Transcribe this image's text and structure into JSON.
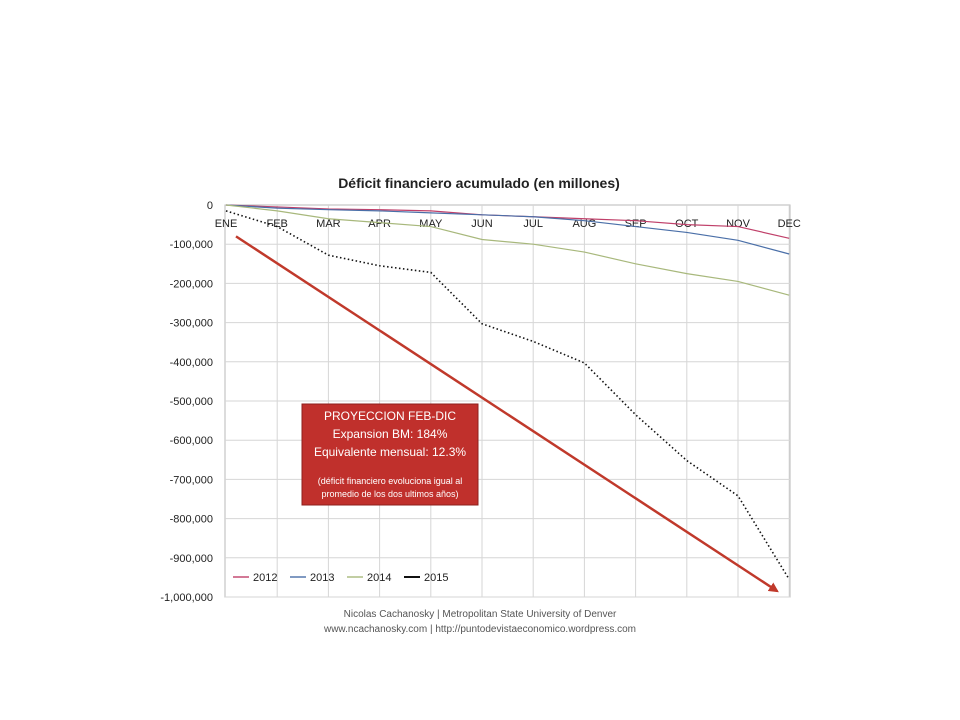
{
  "chart_data": {
    "type": "line",
    "title": "Déficit financiero acumulado (en millones)",
    "categories": [
      "ENE",
      "FEB",
      "MAR",
      "APR",
      "MAY",
      "JUN",
      "JUL",
      "AUG",
      "SEP",
      "OCT",
      "NOV",
      "DEC"
    ],
    "y_ticks": [
      "0",
      "-100,000",
      "-200,000",
      "-300,000",
      "-400,000",
      "-500,000",
      "-600,000",
      "-700,000",
      "-800,000",
      "-900,000",
      "-1,000,000"
    ],
    "ylim": [
      -1000000,
      0
    ],
    "grid": true,
    "legend_position": "bottom-left",
    "series": [
      {
        "name": "2012",
        "color": "#c0406a",
        "style": "solid",
        "values": [
          0,
          -5000,
          -10000,
          -12000,
          -15000,
          -25000,
          -30000,
          -35000,
          -40000,
          -50000,
          -55000,
          -85000
        ]
      },
      {
        "name": "2013",
        "color": "#4a6fa8",
        "style": "solid",
        "values": [
          0,
          -8000,
          -12000,
          -15000,
          -20000,
          -25000,
          -30000,
          -40000,
          -55000,
          -70000,
          -90000,
          -125000
        ]
      },
      {
        "name": "2014",
        "color": "#a8b87c",
        "style": "solid",
        "values": [
          0,
          -15000,
          -35000,
          -45000,
          -55000,
          -88000,
          -100000,
          -120000,
          -150000,
          -175000,
          -195000,
          -230000
        ]
      },
      {
        "name": "2015",
        "color": "#111111",
        "style": "dotted",
        "values": [
          -15000,
          -55000,
          -128000,
          -155000,
          -172000,
          -303000,
          -348000,
          -403000,
          -535000,
          -652000,
          -742000,
          -955000
        ]
      }
    ],
    "projection_arrow": {
      "from": [
        "ENE",
        -80000
      ],
      "to": [
        "DEC",
        -985000
      ],
      "color": "#c0392b"
    },
    "callout": {
      "lines": [
        "PROYECCION FEB-DIC",
        "Expansion BM: 184%",
        "Equivalente mensual: 12.3%"
      ],
      "note_lines": [
        "(déficit financiero evoluciona igual al",
        "promedio de los dos ultimos años)"
      ],
      "fill": "#c0302c"
    },
    "footer": [
      "Nicolas Cachanosky | Metropolitan State University of Denver",
      "www.ncachanosky.com  |  http://puntodevistaeconomico.wordpress.com"
    ]
  }
}
